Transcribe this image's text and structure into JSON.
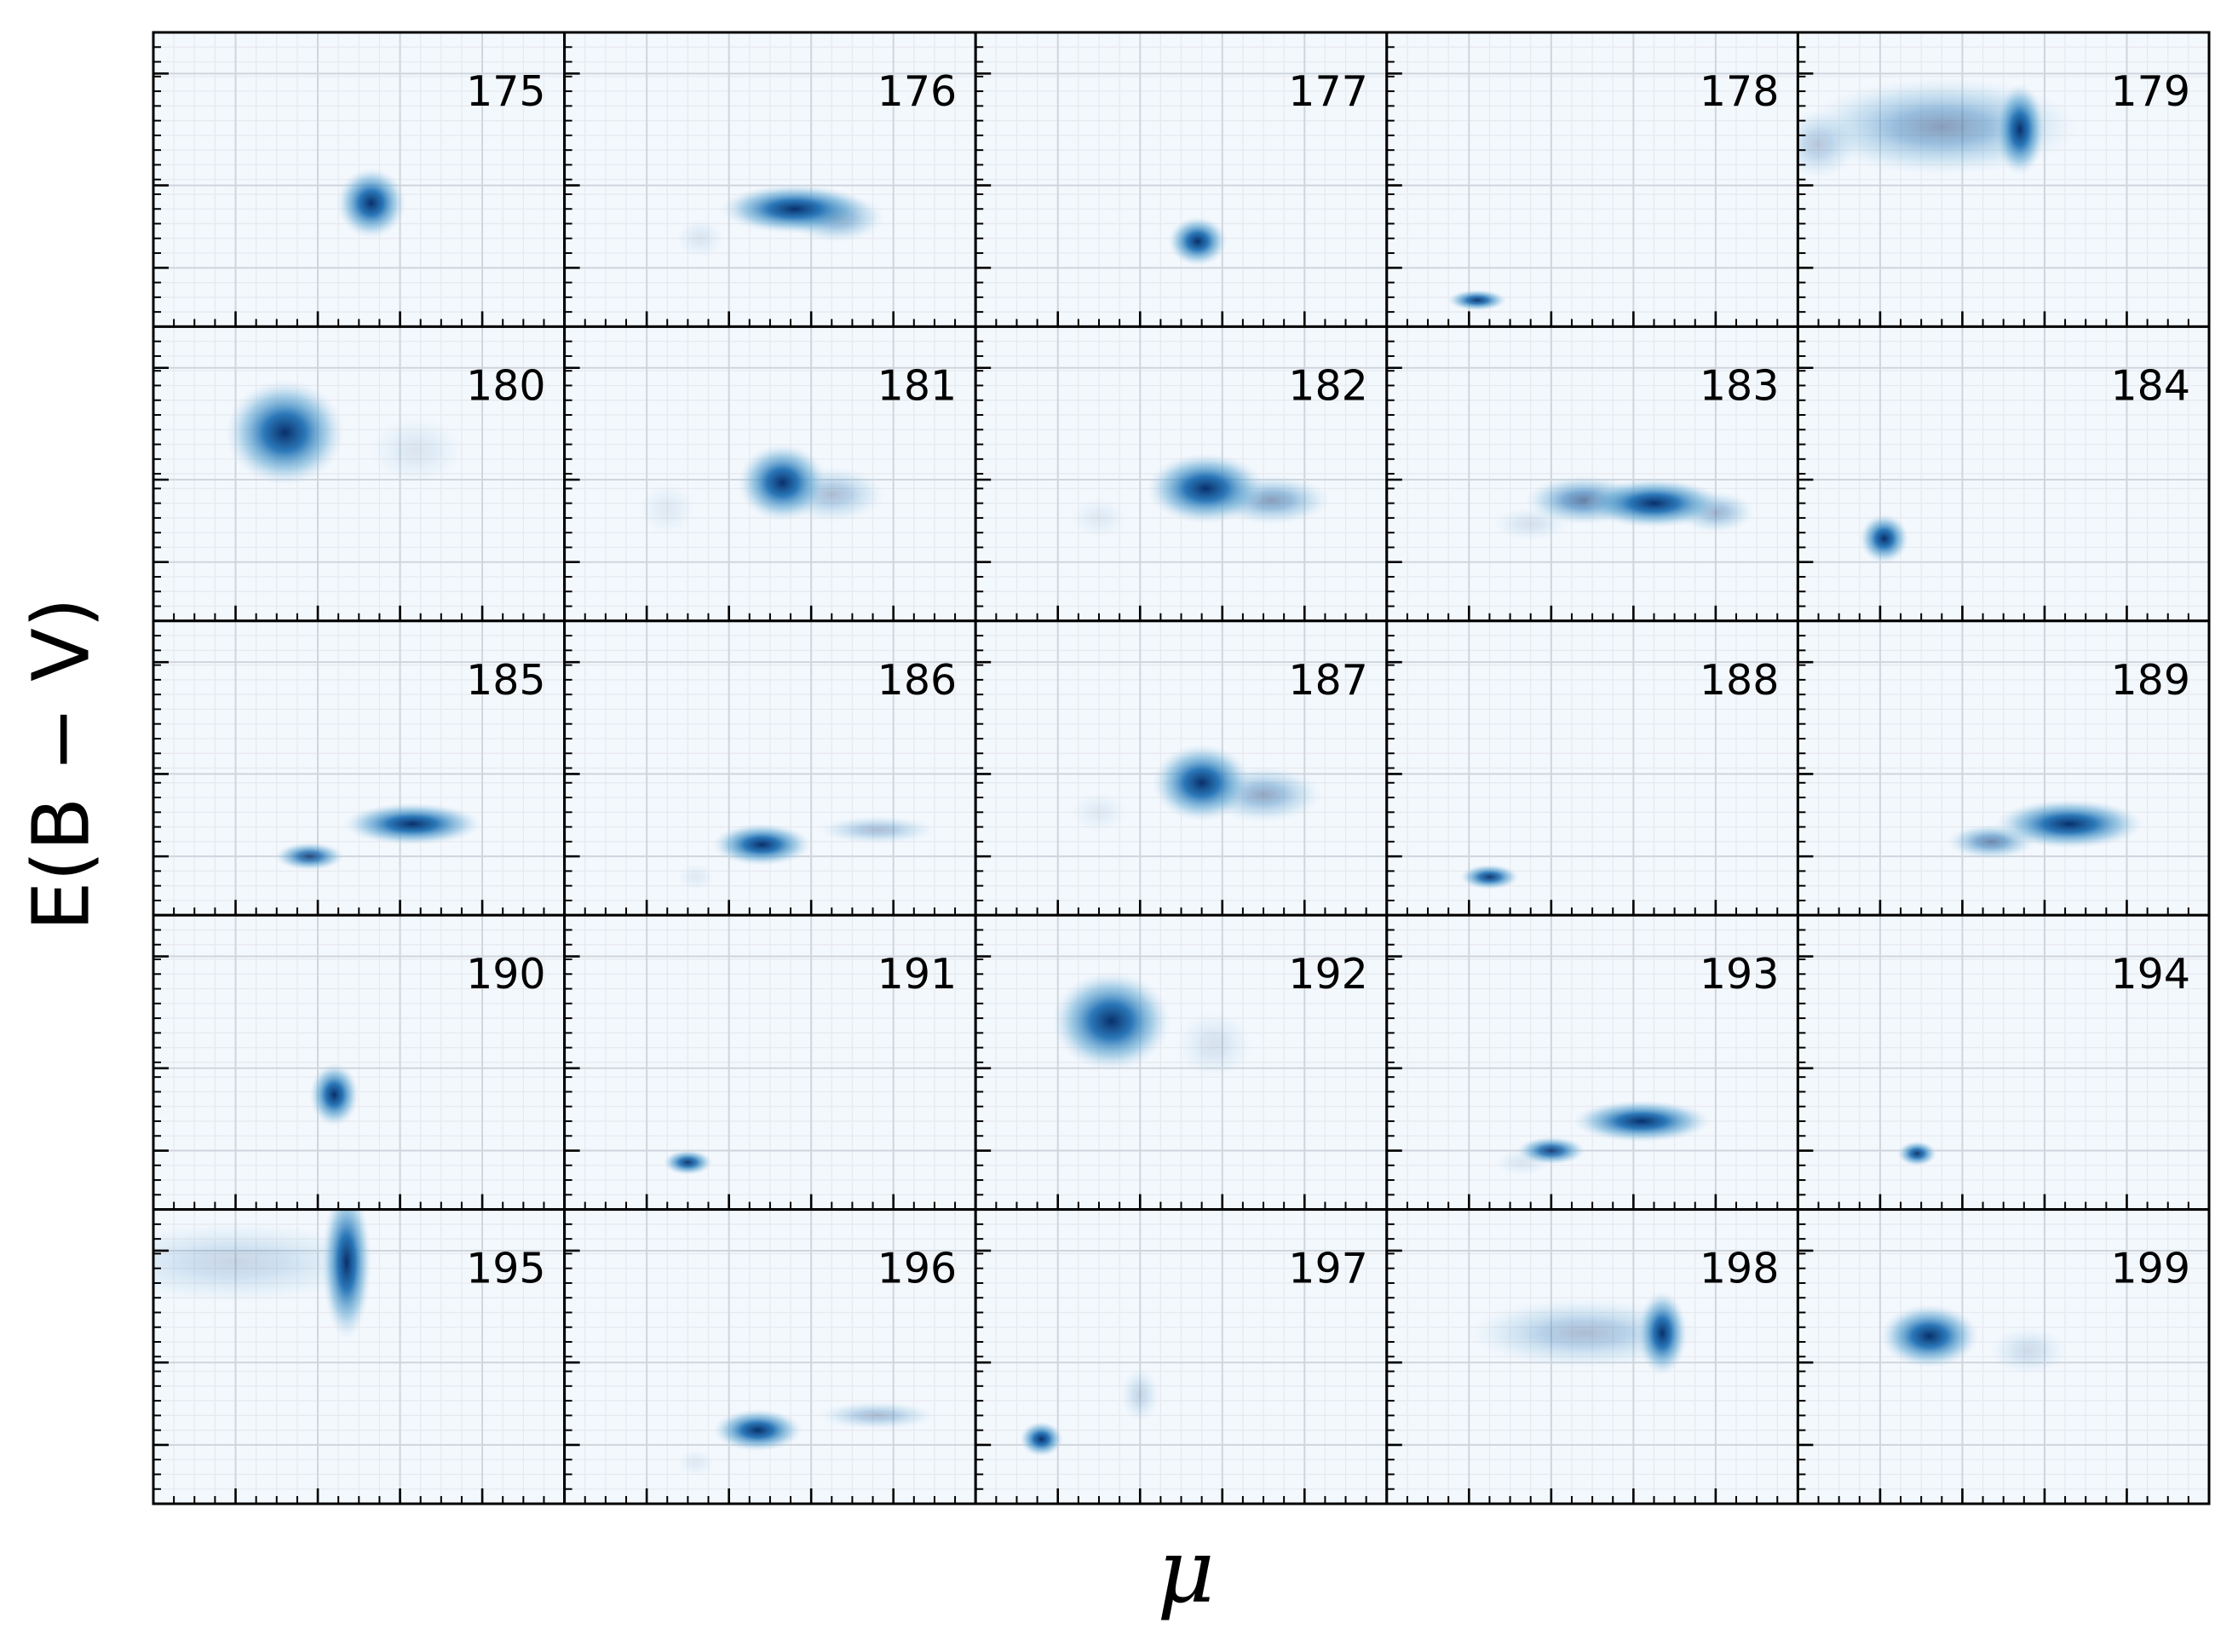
{
  "chart_data": {
    "type": "heatmap",
    "layout": {
      "rows": 5,
      "cols": 5
    },
    "xlabel": "μ",
    "ylabel": "E(B − V)",
    "colormap": "Blues",
    "grid": true,
    "tick_labels_shown": false,
    "panels": [
      {
        "label": "175",
        "blobs": [
          {
            "x": 0.53,
            "y": 0.42,
            "sx": 0.035,
            "sy": 0.05,
            "w": 1.0
          }
        ]
      },
      {
        "label": "176",
        "blobs": [
          {
            "x": 0.56,
            "y": 0.4,
            "sx": 0.075,
            "sy": 0.035,
            "w": 1.0
          },
          {
            "x": 0.66,
            "y": 0.37,
            "sx": 0.05,
            "sy": 0.035,
            "w": 0.45
          },
          {
            "x": 0.33,
            "y": 0.3,
            "sx": 0.025,
            "sy": 0.03,
            "w": 0.1
          }
        ]
      },
      {
        "label": "177",
        "blobs": [
          {
            "x": 0.54,
            "y": 0.29,
            "sx": 0.03,
            "sy": 0.035,
            "w": 1.0
          }
        ]
      },
      {
        "label": "178",
        "blobs": [
          {
            "x": 0.22,
            "y": 0.09,
            "sx": 0.03,
            "sy": 0.015,
            "w": 0.95
          }
        ]
      },
      {
        "label": "179",
        "blobs": [
          {
            "x": 0.54,
            "y": 0.67,
            "sx": 0.025,
            "sy": 0.065,
            "w": 1.0
          },
          {
            "x": 0.35,
            "y": 0.68,
            "sx": 0.14,
            "sy": 0.07,
            "w": 0.45
          },
          {
            "x": 0.05,
            "y": 0.62,
            "sx": 0.04,
            "sy": 0.05,
            "w": 0.25
          }
        ]
      },
      {
        "label": "180",
        "blobs": [
          {
            "x": 0.32,
            "y": 0.64,
            "sx": 0.06,
            "sy": 0.075,
            "w": 1.0
          },
          {
            "x": 0.64,
            "y": 0.58,
            "sx": 0.05,
            "sy": 0.05,
            "w": 0.1
          }
        ]
      },
      {
        "label": "181",
        "blobs": [
          {
            "x": 0.53,
            "y": 0.47,
            "sx": 0.045,
            "sy": 0.055,
            "w": 1.0
          },
          {
            "x": 0.65,
            "y": 0.43,
            "sx": 0.055,
            "sy": 0.04,
            "w": 0.3
          },
          {
            "x": 0.25,
            "y": 0.38,
            "sx": 0.03,
            "sy": 0.04,
            "w": 0.08
          }
        ]
      },
      {
        "label": "182",
        "blobs": [
          {
            "x": 0.56,
            "y": 0.45,
            "sx": 0.06,
            "sy": 0.05,
            "w": 1.0
          },
          {
            "x": 0.72,
            "y": 0.41,
            "sx": 0.06,
            "sy": 0.035,
            "w": 0.45
          },
          {
            "x": 0.3,
            "y": 0.35,
            "sx": 0.03,
            "sy": 0.03,
            "w": 0.08
          }
        ]
      },
      {
        "label": "183",
        "blobs": [
          {
            "x": 0.65,
            "y": 0.4,
            "sx": 0.07,
            "sy": 0.035,
            "w": 1.0
          },
          {
            "x": 0.48,
            "y": 0.41,
            "sx": 0.06,
            "sy": 0.035,
            "w": 0.6
          },
          {
            "x": 0.8,
            "y": 0.37,
            "sx": 0.04,
            "sy": 0.03,
            "w": 0.35
          },
          {
            "x": 0.35,
            "y": 0.33,
            "sx": 0.04,
            "sy": 0.025,
            "w": 0.12
          }
        ]
      },
      {
        "label": "184",
        "blobs": [
          {
            "x": 0.21,
            "y": 0.28,
            "sx": 0.025,
            "sy": 0.035,
            "w": 1.0
          }
        ]
      },
      {
        "label": "185",
        "blobs": [
          {
            "x": 0.63,
            "y": 0.31,
            "sx": 0.07,
            "sy": 0.03,
            "w": 1.0
          },
          {
            "x": 0.38,
            "y": 0.2,
            "sx": 0.035,
            "sy": 0.02,
            "w": 0.85
          }
        ]
      },
      {
        "label": "186",
        "blobs": [
          {
            "x": 0.48,
            "y": 0.24,
            "sx": 0.05,
            "sy": 0.03,
            "w": 1.0
          },
          {
            "x": 0.76,
            "y": 0.29,
            "sx": 0.06,
            "sy": 0.02,
            "w": 0.3
          },
          {
            "x": 0.32,
            "y": 0.13,
            "sx": 0.02,
            "sy": 0.02,
            "w": 0.08
          }
        ]
      },
      {
        "label": "187",
        "blobs": [
          {
            "x": 0.55,
            "y": 0.45,
            "sx": 0.05,
            "sy": 0.055,
            "w": 1.0
          },
          {
            "x": 0.7,
            "y": 0.41,
            "sx": 0.06,
            "sy": 0.04,
            "w": 0.4
          },
          {
            "x": 0.3,
            "y": 0.35,
            "sx": 0.03,
            "sy": 0.03,
            "w": 0.08
          }
        ]
      },
      {
        "label": "188",
        "blobs": [
          {
            "x": 0.25,
            "y": 0.13,
            "sx": 0.03,
            "sy": 0.018,
            "w": 0.95
          }
        ]
      },
      {
        "label": "189",
        "blobs": [
          {
            "x": 0.66,
            "y": 0.31,
            "sx": 0.075,
            "sy": 0.035,
            "w": 1.0
          },
          {
            "x": 0.47,
            "y": 0.25,
            "sx": 0.045,
            "sy": 0.025,
            "w": 0.55
          }
        ]
      },
      {
        "label": "190",
        "blobs": [
          {
            "x": 0.44,
            "y": 0.39,
            "sx": 0.025,
            "sy": 0.045,
            "w": 1.0
          }
        ]
      },
      {
        "label": "191",
        "blobs": [
          {
            "x": 0.3,
            "y": 0.16,
            "sx": 0.025,
            "sy": 0.018,
            "w": 0.95
          }
        ]
      },
      {
        "label": "192",
        "blobs": [
          {
            "x": 0.33,
            "y": 0.64,
            "sx": 0.06,
            "sy": 0.07,
            "w": 1.0
          },
          {
            "x": 0.58,
            "y": 0.56,
            "sx": 0.04,
            "sy": 0.05,
            "w": 0.12
          }
        ]
      },
      {
        "label": "193",
        "blobs": [
          {
            "x": 0.62,
            "y": 0.3,
            "sx": 0.07,
            "sy": 0.03,
            "w": 1.0
          },
          {
            "x": 0.4,
            "y": 0.2,
            "sx": 0.035,
            "sy": 0.02,
            "w": 0.9
          },
          {
            "x": 0.33,
            "y": 0.16,
            "sx": 0.03,
            "sy": 0.02,
            "w": 0.1
          }
        ]
      },
      {
        "label": "194",
        "blobs": [
          {
            "x": 0.29,
            "y": 0.19,
            "sx": 0.02,
            "sy": 0.018,
            "w": 0.95
          }
        ]
      },
      {
        "label": "195",
        "blobs": [
          {
            "x": 0.47,
            "y": 0.82,
            "sx": 0.025,
            "sy": 0.11,
            "w": 1.0
          },
          {
            "x": 0.2,
            "y": 0.82,
            "sx": 0.15,
            "sy": 0.06,
            "w": 0.18
          }
        ]
      },
      {
        "label": "196",
        "blobs": [
          {
            "x": 0.47,
            "y": 0.25,
            "sx": 0.045,
            "sy": 0.03,
            "w": 1.0
          },
          {
            "x": 0.76,
            "y": 0.3,
            "sx": 0.06,
            "sy": 0.02,
            "w": 0.3
          },
          {
            "x": 0.32,
            "y": 0.14,
            "sx": 0.02,
            "sy": 0.02,
            "w": 0.08
          }
        ]
      },
      {
        "label": "197",
        "blobs": [
          {
            "x": 0.16,
            "y": 0.22,
            "sx": 0.022,
            "sy": 0.025,
            "w": 1.0
          },
          {
            "x": 0.4,
            "y": 0.37,
            "sx": 0.02,
            "sy": 0.04,
            "w": 0.18
          }
        ]
      },
      {
        "label": "198",
        "blobs": [
          {
            "x": 0.67,
            "y": 0.58,
            "sx": 0.025,
            "sy": 0.06,
            "w": 1.0
          },
          {
            "x": 0.48,
            "y": 0.58,
            "sx": 0.12,
            "sy": 0.05,
            "w": 0.3
          }
        ]
      },
      {
        "label": "199",
        "blobs": [
          {
            "x": 0.32,
            "y": 0.57,
            "sx": 0.05,
            "sy": 0.045,
            "w": 1.0
          },
          {
            "x": 0.56,
            "y": 0.52,
            "sx": 0.04,
            "sy": 0.035,
            "w": 0.15
          }
        ]
      }
    ]
  }
}
